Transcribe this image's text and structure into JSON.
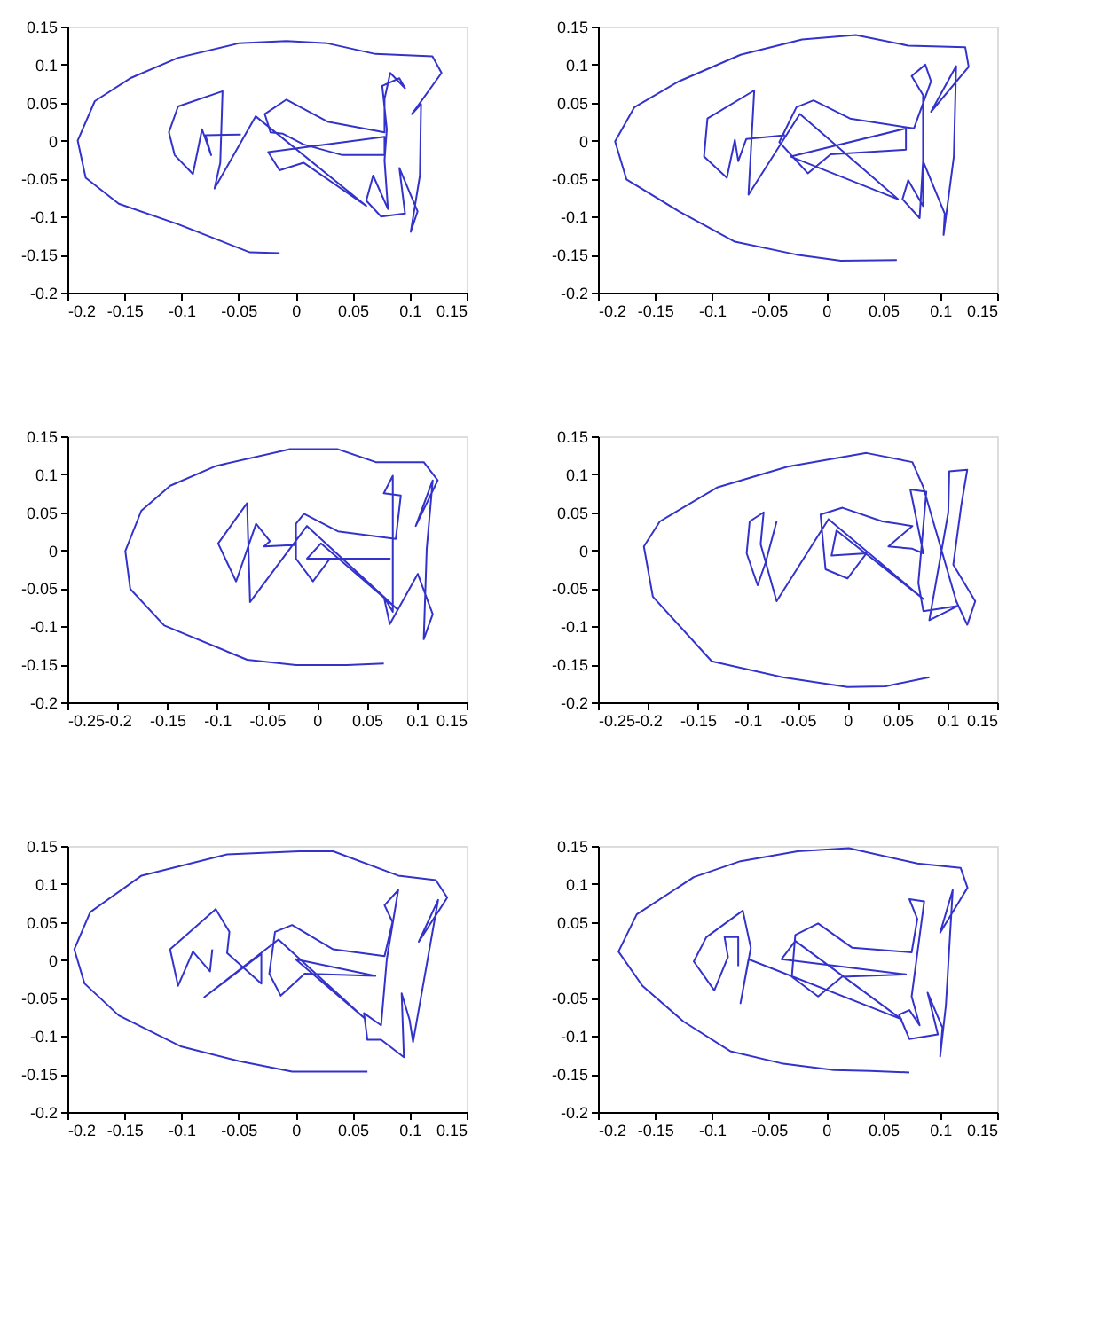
{
  "chart_data": [
    {
      "type": "line",
      "grid": false,
      "xlim": [
        -0.2,
        0.15
      ],
      "ylim": [
        -0.2,
        0.15
      ],
      "xticks": [
        -0.2,
        -0.15,
        -0.1,
        -0.05,
        0,
        0.05,
        0.1,
        0.15
      ],
      "yticks": [
        -0.2,
        -0.15,
        -0.1,
        -0.05,
        0,
        0.05,
        0.1,
        0.15
      ],
      "series": [
        {
          "color": "#3333cc",
          "x": [
            -0.014,
            -0.04,
            -0.103,
            -0.155,
            -0.184,
            -0.191,
            -0.176,
            -0.145,
            -0.103,
            -0.05,
            -0.008,
            0.028,
            0.07,
            0.12,
            0.128,
            0.102,
            0.11,
            0.109,
            0.101,
            0.107,
            0.091,
            0.096,
            0.075,
            0.062,
            0.068,
            0.081,
            0.078,
            0.08,
            0.076,
            0.091,
            0.096,
            0.083,
            0.078,
            0.078,
            0.028,
            -0.008,
            -0.027,
            -0.022,
            -0.011,
            0.007,
            0.041,
            0.078,
            0.078,
            -0.024,
            -0.014,
            0.007,
            0.062,
            -0.035,
            -0.071,
            -0.066,
            -0.064,
            -0.103,
            -0.111,
            -0.106,
            -0.09,
            -0.082,
            -0.074,
            -0.079,
            -0.048
          ],
          "values": [
            -0.148,
            -0.147,
            -0.11,
            -0.083,
            -0.049,
            0,
            0.052,
            0.082,
            0.109,
            0.128,
            0.131,
            0.128,
            0.114,
            0.111,
            0.089,
            0.035,
            0.048,
            -0.046,
            -0.12,
            -0.093,
            -0.036,
            -0.096,
            -0.1,
            -0.079,
            -0.046,
            -0.09,
            -0.026,
            0.015,
            0.072,
            0.082,
            0.069,
            0.089,
            0.055,
            0.011,
            0.025,
            0.054,
            0.035,
            0.011,
            0.009,
            -0.005,
            -0.019,
            -0.019,
            0.005,
            -0.015,
            -0.039,
            -0.029,
            -0.086,
            0.032,
            -0.063,
            -0.029,
            0.065,
            0.045,
            0.011,
            -0.019,
            -0.044,
            0.015,
            -0.019,
            0.007,
            0.008
          ]
        }
      ]
    },
    {
      "type": "line",
      "grid": false,
      "xlim": [
        -0.2,
        0.15
      ],
      "ylim": [
        -0.2,
        0.15
      ],
      "xticks": [
        -0.2,
        -0.15,
        -0.1,
        -0.05,
        0,
        0.05,
        0.1,
        0.15
      ],
      "yticks": [
        -0.2,
        -0.15,
        -0.1,
        -0.05,
        0,
        0.05,
        0.1,
        0.15
      ],
      "series": [
        {
          "color": "#3333cc",
          "x": [
            0.062,
            0.013,
            -0.026,
            -0.08,
            -0.129,
            -0.175,
            -0.185,
            -0.168,
            -0.129,
            -0.075,
            -0.021,
            0.026,
            0.072,
            0.122,
            0.125,
            0.092,
            0.114,
            0.112,
            0.103,
            0.104,
            0.085,
            0.082,
            0.067,
            0.072,
            0.085,
            0.085,
            0.075,
            0.087,
            0.092,
            0.077,
            0.021,
            -0.011,
            -0.026,
            -0.041,
            -0.016,
            0.004,
            0.07,
            0.07,
            -0.031,
            0.063,
            -0.023,
            -0.068,
            -0.063,
            -0.104,
            -0.107,
            -0.087,
            -0.08,
            -0.077,
            -0.07,
            -0.036
          ],
          "values": [
            -0.157,
            -0.158,
            -0.15,
            -0.133,
            -0.093,
            -0.051,
            -0.001,
            0.044,
            0.078,
            0.113,
            0.133,
            0.139,
            0.125,
            0.123,
            0.097,
            0.038,
            0.098,
            -0.021,
            -0.124,
            -0.096,
            -0.027,
            -0.102,
            -0.077,
            -0.052,
            -0.086,
            0.06,
            0.085,
            0.1,
            0.078,
            0.016,
            0.029,
            0.053,
            0.044,
            -0.002,
            -0.043,
            -0.018,
            -0.012,
            0.016,
            -0.021,
            -0.077,
            0.035,
            -0.071,
            0.066,
            0.029,
            -0.021,
            -0.049,
            0.001,
            -0.027,
            0.002,
            0.007
          ]
        }
      ]
    },
    {
      "type": "line",
      "grid": false,
      "xlim": [
        -0.25,
        0.15
      ],
      "ylim": [
        -0.2,
        0.15
      ],
      "xticks": [
        -0.25,
        -0.2,
        -0.15,
        -0.1,
        -0.05,
        0,
        0.05,
        0.1,
        0.15
      ],
      "yticks": [
        -0.2,
        -0.15,
        -0.1,
        -0.05,
        0,
        0.05,
        0.1,
        0.15
      ],
      "series": [
        {
          "color": "#3333cc",
          "x": [
            0.067,
            0.03,
            -0.021,
            -0.07,
            -0.153,
            -0.187,
            -0.192,
            -0.176,
            -0.147,
            -0.101,
            -0.027,
            0.021,
            0.059,
            0.107,
            0.121,
            0.099,
            0.116,
            0.11,
            0.107,
            0.116,
            0.101,
            0.073,
            0.067,
            0.076,
            0.076,
            0.067,
            0.084,
            0.079,
            0.021,
            -0.013,
            -0.021,
            -0.021,
            -0.004,
            0.013,
            0.073,
            -0.01,
            0.004,
            0.081,
            -0.01,
            -0.067,
            -0.07,
            -0.099,
            -0.081,
            -0.061,
            -0.047,
            -0.053,
            -0.021
          ],
          "values": [
            -0.149,
            -0.151,
            -0.151,
            -0.144,
            -0.099,
            -0.051,
            -0.001,
            0.052,
            0.085,
            0.111,
            0.133,
            0.133,
            0.116,
            0.116,
            0.092,
            0.032,
            0.092,
            0.002,
            -0.117,
            -0.084,
            -0.031,
            -0.097,
            -0.061,
            -0.081,
            0.098,
            0.075,
            0.072,
            0.015,
            0.025,
            0.048,
            0.035,
            -0.011,
            -0.041,
            -0.011,
            -0.011,
            -0.011,
            0.009,
            -0.078,
            0.032,
            -0.068,
            0.062,
            0.009,
            -0.041,
            0.035,
            0.012,
            0.005,
            0.007
          ]
        }
      ]
    },
    {
      "type": "line",
      "grid": false,
      "xlim": [
        -0.25,
        0.15
      ],
      "ylim": [
        -0.2,
        0.15
      ],
      "xticks": [
        -0.25,
        -0.2,
        -0.15,
        -0.1,
        -0.05,
        0,
        0.05,
        0.1,
        0.15
      ],
      "yticks": [
        -0.2,
        -0.15,
        -0.1,
        -0.05,
        0,
        0.05,
        0.1,
        0.15
      ],
      "series": [
        {
          "color": "#3333cc",
          "x": [
            0.082,
            0.038,
            0,
            -0.065,
            -0.136,
            -0.195,
            -0.204,
            -0.188,
            -0.13,
            -0.06,
            0.019,
            0.065,
            0.076,
            0.109,
            0.12,
            0.128,
            0.106,
            0.114,
            0.12,
            0.102,
            0.101,
            0.082,
            0.111,
            0.076,
            0.071,
            0.079,
            0.063,
            0.076,
            0.065,
            0.041,
            0.065,
            0.035,
            -0.005,
            -0.027,
            -0.022,
            0,
            0.019,
            -0.016,
            -0.011,
            0.076,
            -0.019,
            -0.071,
            -0.087,
            -0.084,
            -0.098,
            -0.101,
            -0.09,
            -0.082,
            -0.071
          ],
          "values": [
            -0.167,
            -0.179,
            -0.18,
            -0.167,
            -0.146,
            -0.061,
            0.005,
            0.038,
            0.083,
            0.11,
            0.128,
            0.116,
            0.083,
            -0.067,
            -0.098,
            -0.067,
            -0.019,
            0.059,
            0.106,
            0.104,
            0.05,
            -0.092,
            -0.073,
            -0.08,
            -0.043,
            0.077,
            0.08,
            -0.004,
            0.002,
            0.005,
            0.032,
            0.038,
            0.056,
            0.047,
            -0.025,
            -0.037,
            -0.004,
            -0.007,
            0.026,
            -0.064,
            0.041,
            -0.067,
            0.008,
            0.05,
            0.038,
            -0.004,
            -0.046,
            -0.016,
            0.038
          ]
        }
      ]
    },
    {
      "type": "line",
      "grid": false,
      "xlim": [
        -0.2,
        0.15
      ],
      "ylim": [
        -0.2,
        0.15
      ],
      "xticks": [
        -0.2,
        -0.15,
        -0.1,
        -0.05,
        0,
        0.05,
        0.1,
        0.15
      ],
      "yticks": [
        -0.2,
        -0.15,
        -0.1,
        -0.05,
        0,
        0.05,
        0.1,
        0.15
      ],
      "series": [
        {
          "color": "#3333cc",
          "x": [
            0.063,
            0.033,
            -0.003,
            -0.05,
            -0.1,
            -0.155,
            -0.185,
            -0.194,
            -0.18,
            -0.135,
            -0.06,
            0.003,
            0.033,
            0.09,
            0.123,
            0.133,
            0.108,
            0.125,
            0.103,
            0.1,
            0.093,
            0.095,
            0.075,
            0.063,
            0.06,
            0.075,
            0.08,
            0.09,
            0.078,
            0.085,
            0.078,
            0.033,
            -0.003,
            -0.018,
            -0.023,
            -0.013,
            0.008,
            0.07,
            0,
            0.06,
            -0.015,
            -0.08,
            -0.03,
            -0.03,
            -0.06,
            -0.058,
            -0.07,
            -0.11,
            -0.103,
            -0.09,
            -0.075,
            -0.073
          ],
          "values": [
            -0.147,
            -0.147,
            -0.147,
            -0.133,
            -0.114,
            -0.073,
            -0.031,
            0.014,
            0.063,
            0.111,
            0.139,
            0.143,
            0.143,
            0.111,
            0.105,
            0.082,
            0.024,
            0.079,
            -0.108,
            -0.079,
            -0.044,
            -0.128,
            -0.105,
            -0.105,
            -0.07,
            -0.086,
            0.001,
            0.092,
            0.072,
            0.05,
            0.005,
            0.014,
            0.046,
            0.037,
            -0.018,
            -0.047,
            -0.018,
            -0.021,
            0.001,
            -0.076,
            0.027,
            -0.049,
            0.008,
            -0.031,
            0.009,
            0.037,
            0.067,
            0.014,
            -0.034,
            0.011,
            -0.015,
            0.014
          ]
        }
      ]
    },
    {
      "type": "line",
      "grid": false,
      "xlim": [
        -0.2,
        0.15
      ],
      "ylim": [
        -0.2,
        0.15
      ],
      "xticks": [
        -0.2,
        -0.15,
        -0.1,
        -0.05,
        0,
        0.05,
        0.1,
        0.15
      ],
      "yticks": [
        -0.2,
        -0.15,
        -0.1,
        -0.05,
        {
          "value": 0,
          "label": null
        },
        0.05,
        0.1,
        0.15
      ],
      "series": [
        {
          "color": "#3333cc",
          "x": [
            0.073,
            0.039,
            0.007,
            -0.039,
            -0.084,
            -0.125,
            -0.161,
            -0.182,
            -0.166,
            -0.116,
            -0.075,
            -0.025,
            0.02,
            0.08,
            0.118,
            0.124,
            0.1,
            0.111,
            0.105,
            0.1,
            0.102,
            0.089,
            0.098,
            0.073,
            0.064,
            0.073,
            0.082,
            0.075,
            0.086,
            0.073,
            0.08,
            0.075,
            0.023,
            -0.007,
            -0.027,
            -0.03,
            -0.007,
            0.014,
            0.07,
            -0.039,
            -0.027,
            0.066,
            -0.068,
            -0.075,
            -0.066,
            -0.073,
            -0.105,
            -0.116,
            -0.098,
            -0.086,
            -0.089,
            -0.077,
            -0.077
          ],
          "values": [
            -0.148,
            -0.146,
            -0.145,
            -0.136,
            -0.12,
            -0.081,
            -0.034,
            0.011,
            0.06,
            0.109,
            0.13,
            0.143,
            0.147,
            0.127,
            0.121,
            0.095,
            0.036,
            0.092,
            -0.06,
            -0.127,
            -0.089,
            -0.043,
            -0.098,
            -0.104,
            -0.072,
            -0.066,
            -0.086,
            -0.048,
            0.077,
            0.08,
            0.054,
            0.01,
            0.016,
            0.048,
            0.033,
            -0.022,
            -0.048,
            -0.022,
            -0.019,
            0.001,
            0.025,
            -0.078,
            0.001,
            -0.057,
            0.016,
            0.065,
            0.03,
            -0.002,
            -0.04,
            0.004,
            0.03,
            0.03,
            -0.008
          ]
        }
      ]
    }
  ]
}
